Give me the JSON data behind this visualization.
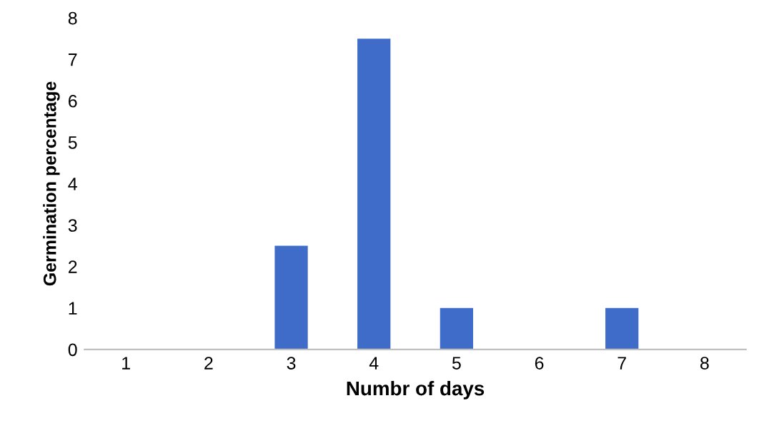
{
  "chart_data": {
    "type": "bar",
    "xlabel": "Numbr of days",
    "ylabel": "Germination percentage",
    "categories": [
      "1",
      "2",
      "3",
      "4",
      "5",
      "6",
      "7",
      "8"
    ],
    "values": [
      0,
      0,
      2.5,
      7.5,
      1,
      0,
      1,
      0
    ],
    "color": "#3f6cc8",
    "ylim": [
      0,
      8
    ],
    "yticks": [
      0,
      1,
      2,
      3,
      4,
      5,
      6,
      7,
      8
    ],
    "grid": false,
    "legend": false
  }
}
